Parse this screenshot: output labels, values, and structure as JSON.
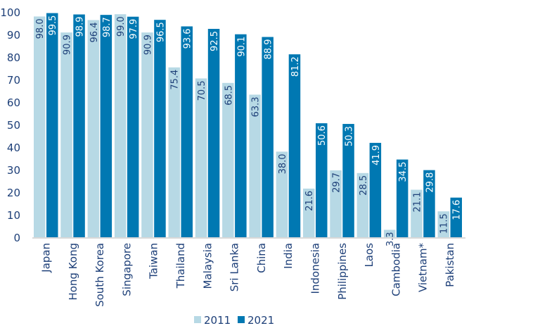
{
  "chart_data": {
    "type": "bar",
    "title": "",
    "xlabel": "",
    "ylabel": "",
    "ylim": [
      0,
      100
    ],
    "yticks": [
      0,
      10,
      20,
      30,
      40,
      50,
      60,
      70,
      80,
      90,
      100
    ],
    "grid": false,
    "legend_position": "bottom",
    "categories": [
      "Japan",
      "Hong Kong",
      "South Korea",
      "Singapore",
      "Taiwan",
      "Thailand",
      "Malaysia",
      "Sri Lanka",
      "China",
      "India",
      "Indonesia",
      "Philippines",
      "Laos",
      "Cambodia",
      "Vietnam*",
      "Pakistan"
    ],
    "series": [
      {
        "name": "2011",
        "color": "#b7d9e5",
        "label_color": "#1d3f78",
        "values": [
          98.0,
          90.9,
          96.4,
          99.0,
          90.9,
          75.4,
          70.5,
          68.5,
          63.3,
          38.0,
          21.6,
          29.7,
          28.5,
          3.3,
          21.1,
          11.5
        ]
      },
      {
        "name": "2021",
        "color": "#0078b2",
        "label_color": "#ffffff",
        "values": [
          99.5,
          98.9,
          98.7,
          97.9,
          96.5,
          93.6,
          92.5,
          90.1,
          88.9,
          81.2,
          50.6,
          50.3,
          41.9,
          34.5,
          29.8,
          17.6
        ]
      }
    ],
    "axis_text_color": "#1d3f78"
  }
}
